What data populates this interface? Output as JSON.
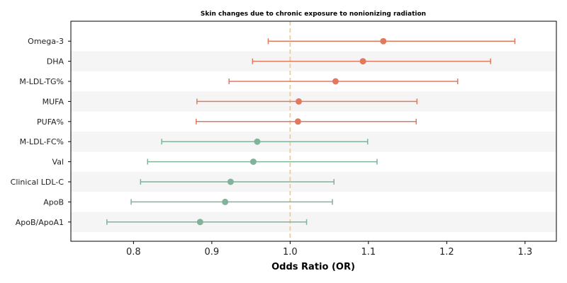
{
  "chart_data": {
    "type": "forest",
    "title": "Skin changes due to chronic exposure to nonionizing radiation",
    "xlabel": "Odds Ratio (OR)",
    "ylabel": "",
    "xlim": [
      0.72,
      1.34
    ],
    "xticks": [
      0.8,
      0.9,
      1.0,
      1.1,
      1.2,
      1.3
    ],
    "xtick_labels": [
      "0.8",
      "0.9",
      "1.0",
      "1.1",
      "1.2",
      "1.3"
    ],
    "reference_line": 1.0,
    "row_shading": "alternating",
    "colors": {
      "positive": "#e07a5f",
      "negative": "#81b29a",
      "reference": "#f2cc8f",
      "band": "#f5f5f5"
    },
    "rows": [
      {
        "label": "Omega-3",
        "or": 1.119,
        "lower": 0.972,
        "upper": 1.287
      },
      {
        "label": "DHA",
        "or": 1.093,
        "lower": 0.952,
        "upper": 1.256
      },
      {
        "label": "M-LDL-TG%",
        "or": 1.058,
        "lower": 0.922,
        "upper": 1.214
      },
      {
        "label": "MUFA",
        "or": 1.011,
        "lower": 0.881,
        "upper": 1.162
      },
      {
        "label": "PUFA%",
        "or": 1.01,
        "lower": 0.88,
        "upper": 1.161
      },
      {
        "label": "M-LDL-FC%",
        "or": 0.958,
        "lower": 0.836,
        "upper": 1.099
      },
      {
        "label": "Val",
        "or": 0.953,
        "lower": 0.818,
        "upper": 1.111
      },
      {
        "label": "Clinical LDL-C",
        "or": 0.924,
        "lower": 0.809,
        "upper": 1.056
      },
      {
        "label": "ApoB",
        "or": 0.917,
        "lower": 0.797,
        "upper": 1.054
      },
      {
        "label": "ApoB/ApoA1",
        "or": 0.885,
        "lower": 0.766,
        "upper": 1.021
      }
    ]
  }
}
